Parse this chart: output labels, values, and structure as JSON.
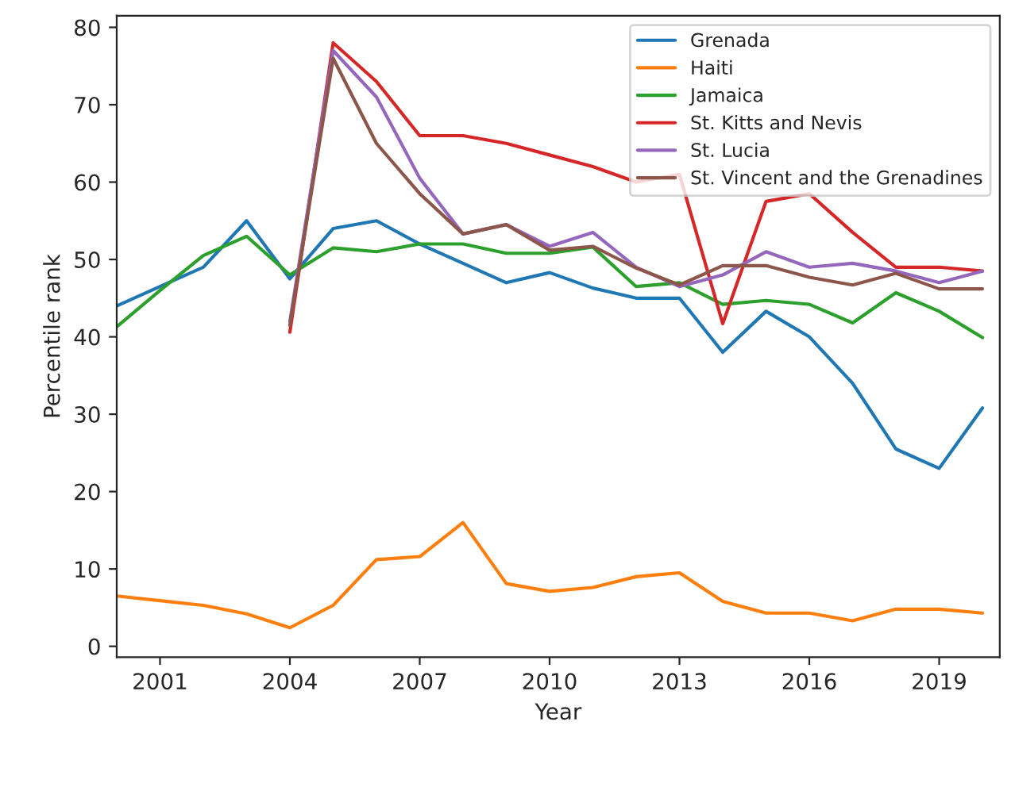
{
  "chart_data": {
    "type": "line",
    "xlabel": "Year",
    "ylabel": "Percentile rank",
    "x": [
      2000,
      2001,
      2002,
      2003,
      2004,
      2005,
      2006,
      2007,
      2008,
      2009,
      2010,
      2011,
      2012,
      2013,
      2014,
      2015,
      2016,
      2017,
      2018,
      2019,
      2020
    ],
    "series": [
      {
        "name": "Grenada",
        "color": "#1f77b4",
        "values": [
          44,
          46.5,
          49,
          55,
          47.5,
          54,
          55,
          52,
          49.5,
          47,
          48.3,
          46.3,
          45,
          45,
          38,
          43.3,
          40,
          34,
          25.5,
          23,
          30.8
        ]
      },
      {
        "name": "Haiti",
        "color": "#ff7f0e",
        "values": [
          6.5,
          5.9,
          5.3,
          4.2,
          2.4,
          5.3,
          11.2,
          11.6,
          16,
          8.1,
          7.1,
          7.6,
          9,
          9.5,
          5.8,
          4.3,
          4.3,
          3.3,
          4.8,
          4.8,
          4.3
        ]
      },
      {
        "name": "Jamaica",
        "color": "#2ca02c",
        "values": [
          41.3,
          46,
          50.5,
          53,
          48,
          51.5,
          51,
          52,
          52,
          50.8,
          50.8,
          51.6,
          46.5,
          47,
          44.2,
          44.7,
          44.2,
          41.8,
          45.7,
          43.3,
          39.9
        ]
      },
      {
        "name": "St. Kitts and Nevis",
        "color": "#d62728",
        "values": [
          null,
          null,
          null,
          null,
          40.6,
          78,
          73,
          66,
          66,
          65,
          63.5,
          62,
          60,
          61,
          41.7,
          57.5,
          58.5,
          53.5,
          49,
          49,
          48.5
        ]
      },
      {
        "name": "St. Lucia",
        "color": "#9467bd",
        "values": [
          null,
          null,
          null,
          null,
          42,
          77,
          71,
          60.5,
          53.3,
          54.5,
          51.7,
          53.5,
          49,
          46.5,
          48,
          51,
          49,
          49.5,
          48.5,
          47,
          48.5
        ]
      },
      {
        "name": "St. Vincent and the Grenadines",
        "color": "#8c564b",
        "values": [
          null,
          null,
          null,
          null,
          41.5,
          76,
          65,
          58.5,
          53.3,
          54.5,
          51.2,
          51.7,
          48.9,
          46.7,
          49.2,
          49.2,
          47.7,
          46.7,
          48.2,
          46.2,
          46.2
        ]
      }
    ],
    "xlim": [
      2000,
      2020.4
    ],
    "xticks": [
      2001,
      2004,
      2007,
      2010,
      2013,
      2016,
      2019
    ],
    "ylim": [
      -1.4,
      81.5
    ],
    "yticks": [
      0,
      10,
      20,
      30,
      40,
      50,
      60,
      70,
      80
    ],
    "legend": "top right",
    "grid": false
  }
}
